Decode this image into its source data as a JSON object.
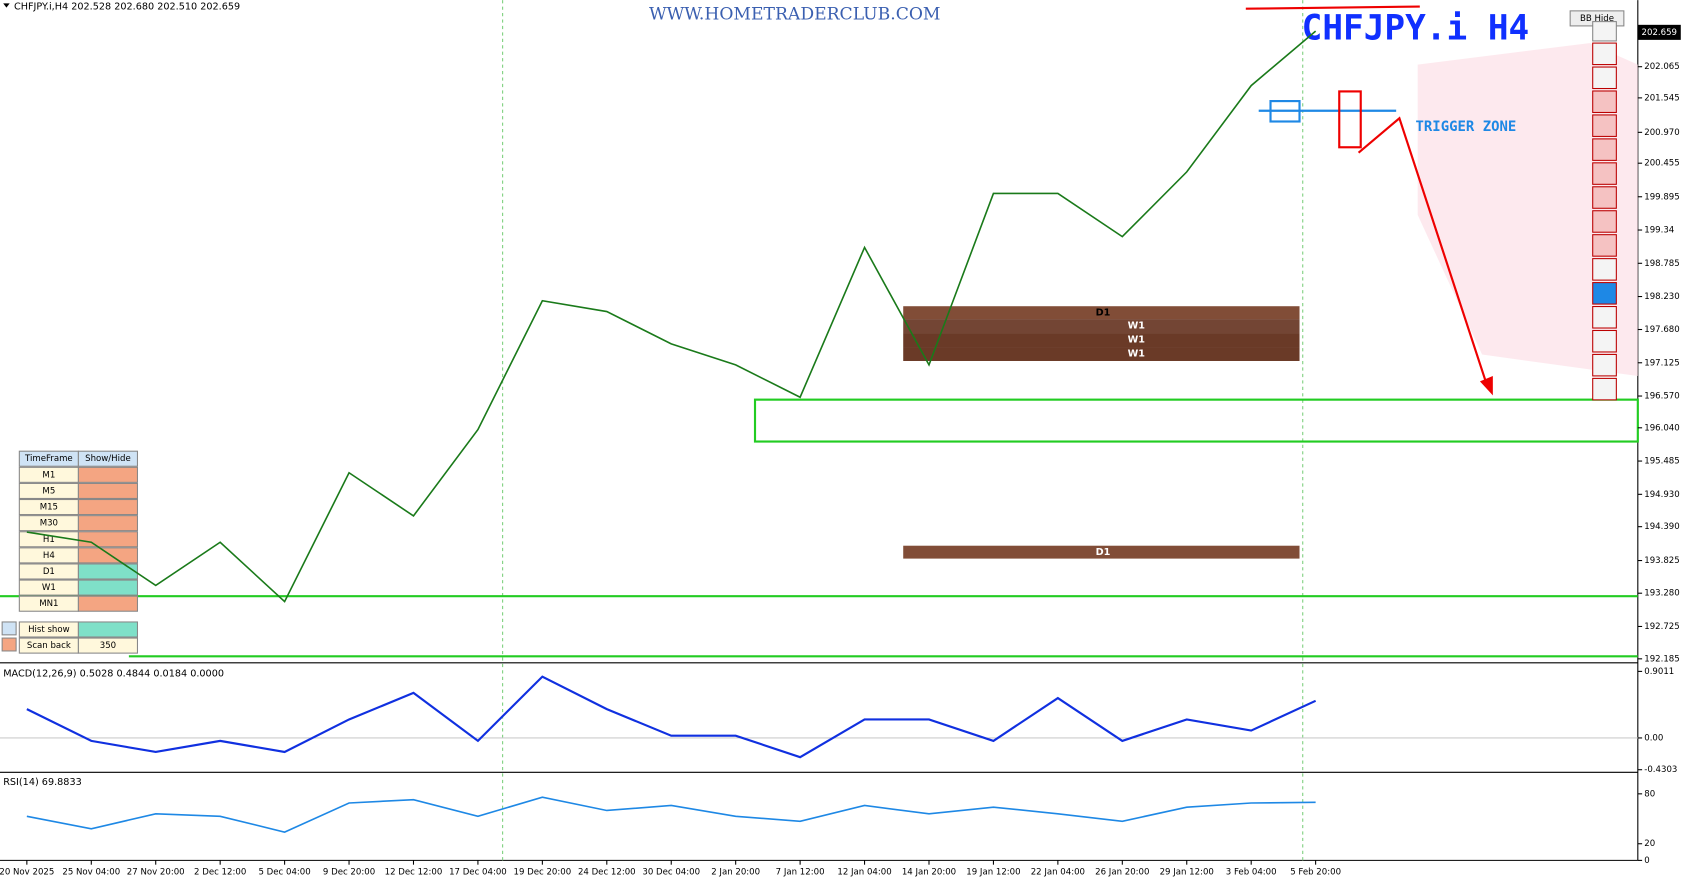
{
  "header": {
    "symbol_info": "CHFJPY.i,H4  202.528 202.680 202.510 202.659",
    "watermark": "WWW.HOMETRADERCLUB.COM",
    "title": "CHFJPY.i  H4",
    "bb_button": "BB Hide",
    "current_price": "202.659"
  },
  "annotations": {
    "trigger_zone": "TRIGGER ZONE",
    "zones": [
      "D1",
      "W1",
      "W1",
      "W1",
      "D1"
    ]
  },
  "timeframe_panel": {
    "headers": [
      "TimeFrame",
      "Show/Hide"
    ],
    "rows": [
      "M1",
      "M5",
      "M15",
      "M30",
      "H1",
      "H4",
      "D1",
      "W1",
      "MN1"
    ],
    "hist_show": "Hist show",
    "scan_back": "Scan back",
    "scan_back_value": "350"
  },
  "chart_data": [
    {
      "type": "line",
      "color": "#1a7a1a",
      "categories": [
        "20 Nov 2025",
        "25 Nov 04:00",
        "27 Nov 20:00",
        "2 Dec 12:00",
        "5 Dec 04:00",
        "9 Dec 20:00",
        "12 Dec 12:00",
        "17 Dec 04:00",
        "19 Dec 20:00",
        "24 Dec 12:00",
        "30 Dec 04:00",
        "2 Jan 20:00",
        "7 Jan 12:00",
        "12 Jan 04:00",
        "14 Jan 20:00",
        "19 Jan 12:00",
        "22 Jan 04:00",
        "26 Jan 20:00",
        "29 Jan 12:00",
        "3 Feb 04:00",
        "5 Feb 20:00"
      ],
      "values": [
        194.3,
        194.13,
        193.41,
        194.13,
        193.14,
        195.29,
        194.57,
        196.01,
        198.16,
        197.98,
        197.44,
        197.09,
        196.55,
        199.05,
        197.09,
        199.95,
        199.95,
        199.23,
        200.31,
        201.75,
        202.659
      ],
      "ylim": [
        192.155,
        203.176
      ],
      "yticks": [
        202.065,
        201.545,
        {
          "value": 200.97,
          "label": "200.970"
        },
        200.455,
        199.895,
        199.34,
        198.785,
        {
          "value": 198.23,
          "label": "198.230"
        },
        {
          "value": 197.68,
          "label": "197.680"
        },
        197.125,
        {
          "value": 196.57,
          "label": "196.570"
        },
        {
          "value": 196.04,
          "label": "196.040"
        },
        195.485,
        {
          "value": 194.93,
          "label": "194.930"
        },
        {
          "value": 194.39,
          "label": "194.390"
        },
        193.825,
        {
          "value": 193.28,
          "label": "193.280"
        },
        192.725,
        192.185
      ]
    },
    {
      "type": "line",
      "title": "MACD(12,26,9) 0.5028 0.4844 0.0184 0.0000",
      "color": "#1030e0",
      "values": [
        0.39,
        -0.04,
        -0.19,
        -0.04,
        -0.19,
        0.25,
        0.61,
        -0.04,
        0.83,
        0.39,
        0.03,
        0.03,
        -0.26,
        0.25,
        0.25,
        -0.04,
        0.54,
        -0.04,
        0.25,
        0.1,
        0.5028
      ],
      "ylim": [
        -0.451,
        0.974
      ],
      "yticks": [
        0.9011,
        {
          "value": 0,
          "label": "0.00"
        },
        -0.4303
      ]
    },
    {
      "type": "line",
      "title": "RSI(14) 69.8833",
      "color": "#1e88e5",
      "values": [
        53,
        38,
        56,
        53,
        34,
        69,
        73,
        53,
        76,
        60,
        66,
        53,
        47,
        66,
        56,
        64,
        56,
        47,
        64,
        69,
        69.8833
      ],
      "ylim": [
        0,
        102
      ],
      "yticks": [
        80,
        20,
        0
      ]
    }
  ]
}
